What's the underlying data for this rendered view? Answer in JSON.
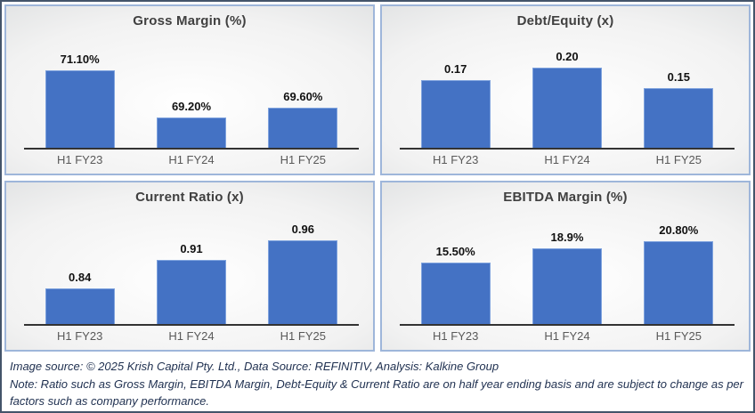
{
  "colors": {
    "bar": "#4472C4",
    "bar_edge": "#7FA3DE",
    "panel_border": "#9EB6DA",
    "outer_border": "#44546A",
    "title_text": "#404040",
    "category_text": "#595959",
    "value_text": "#111111",
    "axis_line": "#333333",
    "footer_text": "#1F3050"
  },
  "chart_data": [
    {
      "type": "bar",
      "title": "Gross Margin (%)",
      "categories": [
        "H1 FY23",
        "H1 FY24",
        "H1 FY25"
      ],
      "values": [
        71.1,
        69.2,
        69.6
      ],
      "value_labels": [
        "71.10%",
        "69.20%",
        "69.60%"
      ],
      "ylim": [
        68,
        72
      ],
      "grid": false,
      "legend": false
    },
    {
      "type": "bar",
      "title": "Debt/Equity (x)",
      "categories": [
        "H1 FY23",
        "H1 FY24",
        "H1 FY25"
      ],
      "values": [
        0.17,
        0.2,
        0.15
      ],
      "value_labels": [
        "0.17",
        "0.20",
        "0.15"
      ],
      "ylim": [
        0,
        0.25
      ],
      "grid": false,
      "legend": false
    },
    {
      "type": "bar",
      "title": "Current Ratio (x)",
      "categories": [
        "H1 FY23",
        "H1 FY24",
        "H1 FY25"
      ],
      "values": [
        0.84,
        0.91,
        0.96
      ],
      "value_labels": [
        "0.84",
        "0.91",
        "0.96"
      ],
      "ylim": [
        0.75,
        1.0
      ],
      "grid": false,
      "legend": false
    },
    {
      "type": "bar",
      "title": "EBITDA Margin (%)",
      "categories": [
        "H1 FY23",
        "H1 FY24",
        "H1 FY25"
      ],
      "values": [
        15.5,
        18.9,
        20.8
      ],
      "value_labels": [
        "15.50%",
        "18.9%",
        "20.80%"
      ],
      "ylim": [
        0,
        25
      ],
      "grid": false,
      "legend": false
    }
  ],
  "footer": {
    "source_line": "Image source: © 2025 Krish Capital Pty. Ltd., Data Source: REFINITIV, Analysis: Kalkine Group",
    "note_line": "Note: Ratio such as Gross Margin, EBITDA Margin, Debt-Equity & Current Ratio are on half year ending basis and are subject to change as per factors such as company performance."
  }
}
